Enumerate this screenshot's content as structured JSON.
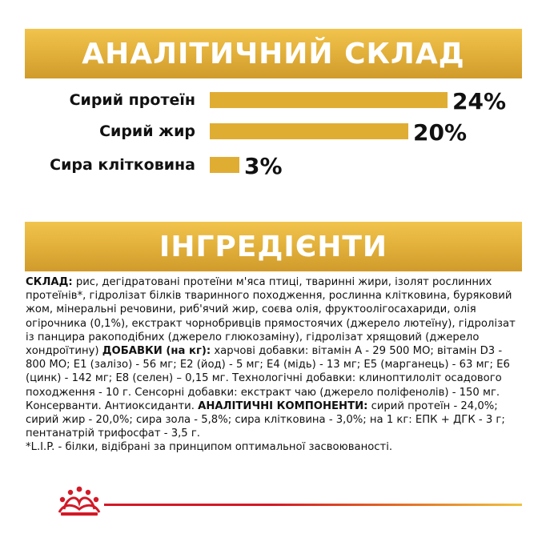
{
  "analysis": {
    "title": "АНАЛІТИЧНИЙ СКЛАД",
    "colors": {
      "bar": "#e0ad33",
      "banner": "#e3b23c"
    },
    "bars": [
      {
        "label": "Сирий протеїн",
        "value": 24,
        "display": "24%"
      },
      {
        "label": "Сирий жир",
        "value": 20,
        "display": "20%"
      },
      {
        "label": "Сира клітковина",
        "value": 3,
        "display": "3%"
      }
    ]
  },
  "ingredients": {
    "title": "ІНГРЕДІЄНТИ",
    "composition_label": "СКЛАД:",
    "composition_text": " рис, дегідратовані протеїни м'яса птиці, тваринні жири, ізолят рослинних протеїнів*, гідролізат білків тваринного походження, рослинна клітковина, буряковий жом, мінеральні речовини, риб'ячий жир, соєва олія, фруктоолігосахариди, олія огірочника (0,1%), екстракт чорнобривців прямостоячих (джерело лютеїну), гідролізат із панцира ракоподібних (джерело глюкозаміну), гідролізат хрящовий (джерело хондроїтину) ",
    "additives_label": "ДОБАВКИ (на кг):",
    "additives_text": " харчові добавки: вітамін А - 29 500 МО; вітамін D3 - 800 МО; E1 (залізо) - 56 мг; E2 (йод) - 5 мг; E4 (мідь) - 13 мг; E5 (марганець) - 63 мг; E6 (цинк) - 142 мг; E8 (селен) – 0,15 мг. Технологічні добавки: клиноптилоліт осадового походження - 10 г. Сенсорні добавки: екстракт чаю (джерело поліфенолів) - 150 мг. Консерванти. Антиоксиданти. ",
    "components_label": "АНАЛІТИЧНІ КОМПОНЕНТИ:",
    "components_text": " сирий протеїн - 24,0%; сирий жир - 20,0%; сира зола - 5,8%; сира клітковина - 3,0%; на 1 кг: ЕПК + ДГК - 3 г; пентанатрій трифосфат - 3,5 г.",
    "footnote": "*L.I.P. - білки, відібрані за принципом оптимальної засвоюваності."
  },
  "footer": {
    "logo_icon": "royal-canin-crown-icon",
    "line_colors": [
      "#d31927",
      "#e36b26",
      "#efc240"
    ]
  }
}
